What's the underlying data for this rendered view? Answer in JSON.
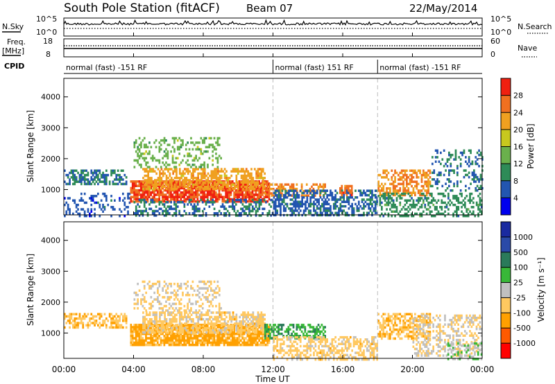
{
  "header": {
    "title": "South Pole Station (fitACF)",
    "beam": "Beam 07",
    "date": "22/May/2014"
  },
  "top_panels": {
    "nsky_label": "N.Sky",
    "nsky_ticks": [
      "10^5",
      "10^0"
    ],
    "nsearch_label": "N.Search",
    "nsearch_ticks": [
      "10^5",
      "10^0"
    ],
    "freq_label": "Freq.",
    "freq_unit": "[MHz]",
    "freq_ticks": [
      "18",
      "8"
    ],
    "nave_label": "Nave",
    "nave_ticks": [
      "60",
      "0"
    ],
    "cpid_label": "CPID",
    "cpid_segments": [
      {
        "label": "normal (fast) -151 RF",
        "start_h": 0,
        "end_h": 12
      },
      {
        "label": "normal (fast) 151 RF",
        "start_h": 12,
        "end_h": 18
      },
      {
        "label": "normal (fast) -151 RF",
        "start_h": 18,
        "end_h": 24
      }
    ]
  },
  "chart_data": [
    {
      "type": "heatmap",
      "panel": "power",
      "ylabel": "Slant Range [km]",
      "xlabel": "Time UT",
      "x_ticks": [
        "00:00",
        "04:00",
        "08:00",
        "12:00",
        "16:00",
        "20:00",
        "00:00"
      ],
      "xlim": [
        0,
        24
      ],
      "y_ticks": [
        1000,
        2000,
        3000,
        4000
      ],
      "ylim": [
        180,
        4600
      ],
      "colorbar": {
        "label": "Power [dB]",
        "ticks": [
          4,
          8,
          12,
          16,
          20,
          24,
          28
        ],
        "range": [
          0,
          32
        ],
        "colors": [
          "#0000ee",
          "#2255b0",
          "#2e8b57",
          "#6ab04c",
          "#c8c81e",
          "#f0a020",
          "#f07020",
          "#f02010"
        ]
      },
      "scatter_regions": [
        {
          "t0": 0.0,
          "t1": 3.6,
          "r0": 1150,
          "r1": 1650,
          "v": 8,
          "d": 0.55
        },
        {
          "t0": 0.0,
          "t1": 3.8,
          "r0": 180,
          "r1": 900,
          "v": 6,
          "d": 0.25
        },
        {
          "t0": 3.8,
          "t1": 11.8,
          "r0": 650,
          "r1": 1300,
          "v": 28,
          "d": 0.85
        },
        {
          "t0": 4.5,
          "t1": 11.5,
          "r0": 1000,
          "r1": 1700,
          "v": 22,
          "d": 0.6
        },
        {
          "t0": 4.0,
          "t1": 9.0,
          "r0": 1700,
          "r1": 2700,
          "v": 14,
          "d": 0.3
        },
        {
          "t0": 4.0,
          "t1": 12.0,
          "r0": 180,
          "r1": 700,
          "v": 8,
          "d": 0.35
        },
        {
          "t0": 11.5,
          "t1": 15.0,
          "r0": 800,
          "r1": 1200,
          "v": 24,
          "d": 0.45
        },
        {
          "t0": 12.0,
          "t1": 18.0,
          "r0": 180,
          "r1": 1000,
          "v": 7,
          "d": 0.55
        },
        {
          "t0": 15.8,
          "t1": 16.5,
          "r0": 850,
          "r1": 1150,
          "v": 26,
          "d": 0.75
        },
        {
          "t0": 18.0,
          "t1": 21.0,
          "r0": 850,
          "r1": 1650,
          "v": 24,
          "d": 0.55
        },
        {
          "t0": 18.0,
          "t1": 24.0,
          "r0": 180,
          "r1": 900,
          "v": 10,
          "d": 0.4
        },
        {
          "t0": 21.0,
          "t1": 24.0,
          "r0": 1000,
          "r1": 2300,
          "v": 8,
          "d": 0.25
        }
      ]
    },
    {
      "type": "heatmap",
      "panel": "velocity",
      "ylabel": "Slant Range [km]",
      "xlabel": "Time UT",
      "x_ticks": [
        "00:00",
        "04:00",
        "08:00",
        "12:00",
        "16:00",
        "20:00",
        "00:00"
      ],
      "xlim": [
        0,
        24
      ],
      "y_ticks": [
        1000,
        2000,
        3000,
        4000
      ],
      "ylim": [
        180,
        4600
      ],
      "colorbar": {
        "label": "Velocity [m s⁻¹]",
        "ticks": [
          1000,
          500,
          100,
          25,
          -25,
          -100,
          -500,
          -1000
        ],
        "range": [
          -1000,
          1000
        ],
        "colors": [
          "#ff0000",
          "#ff5a00",
          "#ffa000",
          "#ffc860",
          "#c0c0c0",
          "#38b838",
          "#2a7a5a",
          "#2a4aa8",
          "#1a2aa0"
        ]
      },
      "scatter_regions": [
        {
          "t0": 0.0,
          "t1": 3.6,
          "r0": 1150,
          "r1": 1650,
          "v": -300,
          "d": 0.55
        },
        {
          "t0": 3.8,
          "t1": 11.8,
          "r0": 650,
          "r1": 1300,
          "v": -400,
          "d": 0.85
        },
        {
          "t0": 4.5,
          "t1": 11.5,
          "r0": 1000,
          "r1": 1700,
          "v": -200,
          "d": 0.6
        },
        {
          "t0": 4.0,
          "t1": 9.0,
          "r0": 1700,
          "r1": 2700,
          "v": -150,
          "d": 0.3
        },
        {
          "t0": 11.5,
          "t1": 15.0,
          "r0": 800,
          "r1": 1300,
          "v": 300,
          "d": 0.55
        },
        {
          "t0": 12.0,
          "t1": 18.0,
          "r0": 180,
          "r1": 900,
          "v": -200,
          "d": 0.5
        },
        {
          "t0": 18.0,
          "t1": 21.0,
          "r0": 850,
          "r1": 1650,
          "v": -300,
          "d": 0.55
        },
        {
          "t0": 20.0,
          "t1": 24.0,
          "r0": 300,
          "r1": 1600,
          "v": -100,
          "d": 0.35
        },
        {
          "t0": 22.0,
          "t1": 24.0,
          "r0": 180,
          "r1": 700,
          "v": 100,
          "d": 0.4
        }
      ]
    }
  ]
}
